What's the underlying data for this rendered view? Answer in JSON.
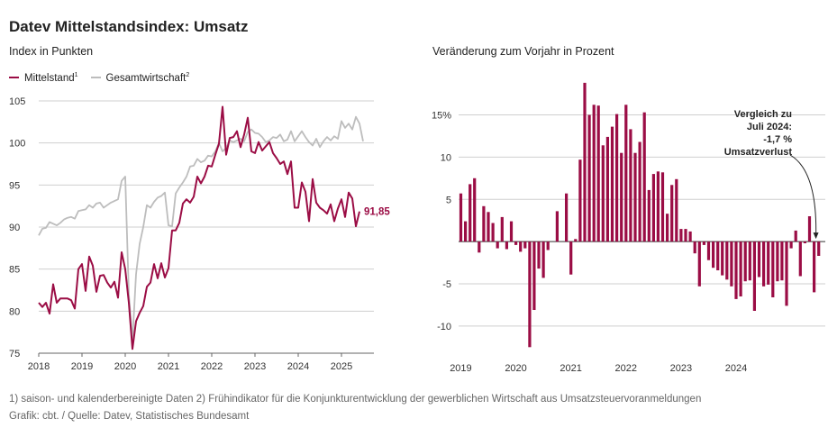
{
  "title": "Datev Mittelstandsindex: Umsatz",
  "colors": {
    "accent": "#9b0d45",
    "gray": "#bdbdbd",
    "grid": "#cfcfcf"
  },
  "chart_data": [
    {
      "type": "line",
      "subtitle": "Index in Punkten",
      "legend": [
        {
          "name": "Mittelstand",
          "sup": "1",
          "color": "#9b0d45"
        },
        {
          "name": "Gesamtwirtschaft",
          "sup": "2",
          "color": "#bdbdbd"
        }
      ],
      "ylim": [
        75,
        105
      ],
      "yticks": [
        75,
        80,
        85,
        90,
        95,
        100,
        105
      ],
      "xlim": [
        2018,
        2025.75
      ],
      "xticks": [
        "2018",
        "2019",
        "2020",
        "2021",
        "2022",
        "2023",
        "2024",
        "2025"
      ],
      "end_label": "91,85",
      "series": [
        {
          "name": "Mittelstand",
          "start": 2018.0,
          "step": 0.0833333,
          "values": [
            81.0,
            80.5,
            81.0,
            79.7,
            83.2,
            81.0,
            81.5,
            81.5,
            81.5,
            81.3,
            80.3,
            85.0,
            85.6,
            82.4,
            86.5,
            85.4,
            82.3,
            84.2,
            84.3,
            83.4,
            82.8,
            83.5,
            81.6,
            87.0,
            85.0,
            81.0,
            75.5,
            78.8,
            79.8,
            80.6,
            82.9,
            83.4,
            85.6,
            83.9,
            85.7,
            84.0,
            85.1,
            89.6,
            89.6,
            90.5,
            92.8,
            93.3,
            92.9,
            93.6,
            96.0,
            95.2,
            96.0,
            97.3,
            97.2,
            98.6,
            99.9,
            104.3,
            98.6,
            100.6,
            100.7,
            101.4,
            99.5,
            101.0,
            103.0,
            99.0,
            98.8,
            100.1,
            99.1,
            99.6,
            100.1,
            98.8,
            98.2,
            97.5,
            97.8,
            96.3,
            97.8,
            92.3,
            92.3,
            95.3,
            94.2,
            90.7,
            95.7,
            92.9,
            92.3,
            92.0,
            91.6,
            92.7,
            90.7,
            92.2,
            93.3,
            91.2,
            94.1,
            93.4,
            90.1,
            91.85
          ]
        },
        {
          "name": "Gesamtwirtschaft",
          "start": 2018.0,
          "step": 0.0833333,
          "values": [
            89.0,
            89.8,
            89.9,
            90.6,
            90.4,
            90.2,
            90.5,
            90.9,
            91.1,
            91.2,
            91.0,
            91.9,
            92.0,
            92.1,
            92.6,
            92.3,
            92.8,
            92.9,
            92.3,
            92.6,
            92.9,
            93.1,
            93.3,
            95.5,
            96.0,
            82.0,
            76.5,
            84.4,
            88.0,
            90.0,
            92.6,
            92.3,
            93.0,
            93.5,
            93.7,
            94.1,
            90.2,
            90.1,
            94.0,
            94.7,
            95.3,
            96.0,
            97.2,
            97.3,
            98.1,
            97.7,
            97.9,
            98.5,
            98.4,
            99.0,
            100.0,
            99.0,
            99.4,
            100.3,
            100.1,
            100.3,
            100.5,
            100.2,
            101.3,
            101.6,
            101.2,
            101.1,
            100.7,
            100.1,
            100.3,
            100.7,
            100.6,
            101.0,
            100.2,
            100.4,
            101.4,
            100.2,
            100.8,
            101.4,
            100.7,
            100.1,
            99.7,
            100.5,
            99.5,
            100.2,
            100.7,
            100.3,
            100.8,
            100.5,
            102.6,
            101.8,
            102.3,
            101.6,
            103.1,
            102.3,
            100.2
          ]
        }
      ]
    },
    {
      "type": "bar",
      "subtitle": "Veränderung zum Vorjahr in Prozent",
      "ylim": [
        -13,
        19
      ],
      "yticks": [
        {
          "v": 15,
          "label": "15%"
        },
        {
          "v": 10,
          "label": "10"
        },
        {
          "v": 5,
          "label": "5"
        },
        {
          "v": -5,
          "label": "-5"
        },
        {
          "v": -10,
          "label": "-10"
        }
      ],
      "xticks": [
        "2019",
        "2020",
        "2021",
        "2022",
        "2023",
        "2024"
      ],
      "start": 2019.0,
      "step": 0.0833333,
      "values": [
        5.7,
        2.4,
        6.8,
        7.5,
        -1.3,
        4.2,
        3.5,
        2.2,
        -0.8,
        2.9,
        -0.9,
        2.4,
        -0.4,
        -1.2,
        -0.8,
        -12.5,
        -8.1,
        -3.2,
        -4.3,
        -1.0,
        0.0,
        3.6,
        0.0,
        5.7,
        -3.9,
        0.3,
        9.7,
        18.8,
        15.0,
        16.2,
        16.1,
        11.4,
        12.4,
        13.6,
        15.1,
        10.5,
        16.2,
        13.3,
        10.5,
        11.8,
        15.3,
        6.1,
        8.0,
        8.3,
        8.2,
        3.3,
        6.7,
        7.4,
        1.5,
        1.5,
        1.2,
        -1.4,
        -5.3,
        -0.4,
        -2.2,
        -3.1,
        -3.4,
        -4.0,
        -4.5,
        -5.3,
        -6.8,
        -6.5,
        -4.7,
        -4.6,
        -8.2,
        -4.2,
        -5.3,
        -5.1,
        -6.6,
        -4.7,
        -4.6,
        -7.6,
        -0.8,
        1.3,
        -4.1,
        -0.2,
        3.0,
        -6.0,
        -1.7
      ],
      "annotation": [
        "Vergleich zu",
        "Juli 2024:",
        "-1,7 %",
        "Umsatzverlust"
      ]
    }
  ],
  "footnote1": "1) saison- und kalenderbereinigte Daten 2) Frühindikator für die Konjunkturentwicklung der gewerblichen Wirtschaft aus Umsatzsteuervoranmeldungen",
  "footnote2": "Grafik: cbt. / Quelle: Datev, Statistisches Bundesamt"
}
